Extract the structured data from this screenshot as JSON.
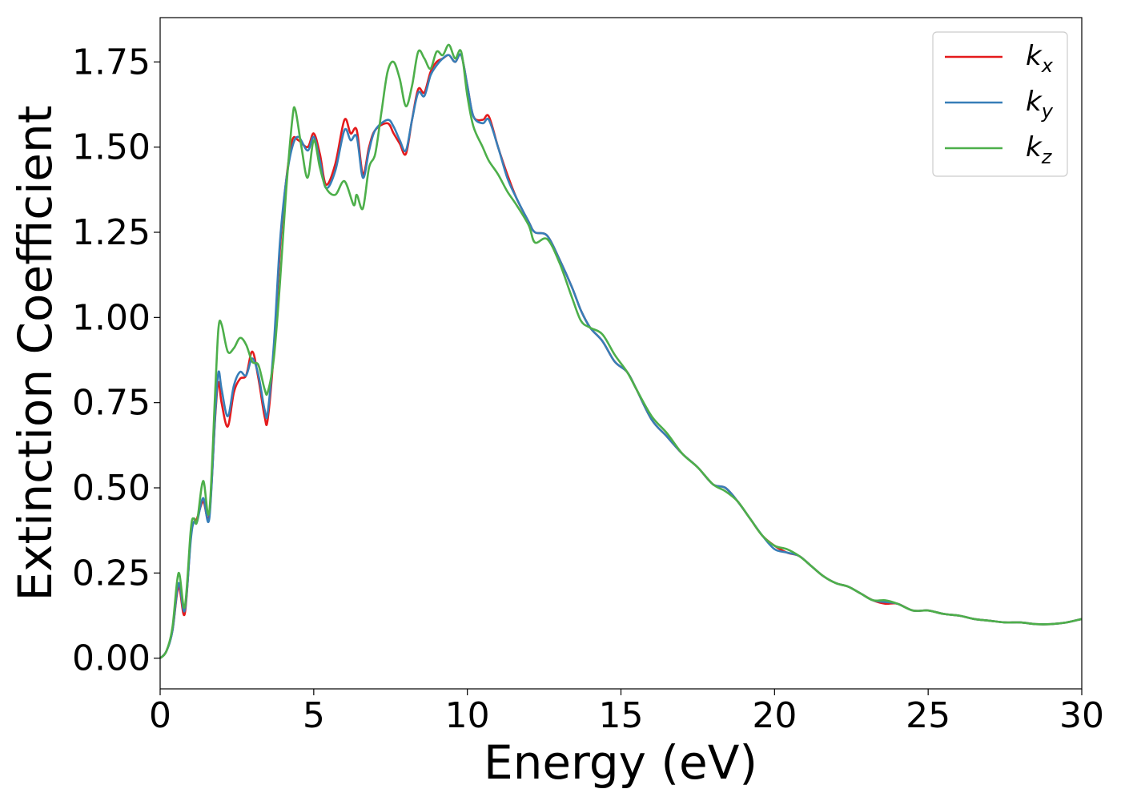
{
  "chart_data": {
    "type": "line",
    "title": "",
    "xlabel": "Energy (eV)",
    "ylabel": "Extinction Coefficient",
    "xlim": [
      0,
      30
    ],
    "ylim": [
      -0.09,
      1.88
    ],
    "xticks": [
      0,
      5,
      10,
      15,
      20,
      25,
      30
    ],
    "xtick_labels": [
      "0",
      "5",
      "10",
      "15",
      "20",
      "25",
      "30"
    ],
    "yticks": [
      0,
      0.25,
      0.5,
      0.75,
      1.0,
      1.25,
      1.5,
      1.75
    ],
    "ytick_labels": [
      "0.00",
      "0.25",
      "0.50",
      "0.75",
      "1.00",
      "1.25",
      "1.50",
      "1.75"
    ],
    "grid": false,
    "legend_position": "top-right",
    "series": [
      {
        "name": "k",
        "name_subscript": "x",
        "color": "#e41a1c",
        "points": [
          [
            0,
            0.0
          ],
          [
            0.2,
            0.02
          ],
          [
            0.4,
            0.08
          ],
          [
            0.6,
            0.21
          ],
          [
            0.8,
            0.13
          ],
          [
            1.0,
            0.36
          ],
          [
            1.1,
            0.4
          ],
          [
            1.2,
            0.41
          ],
          [
            1.4,
            0.46
          ],
          [
            1.6,
            0.42
          ],
          [
            1.8,
            0.72
          ],
          [
            1.9,
            0.81
          ],
          [
            2.0,
            0.75
          ],
          [
            2.2,
            0.68
          ],
          [
            2.4,
            0.78
          ],
          [
            2.6,
            0.82
          ],
          [
            2.8,
            0.83
          ],
          [
            3.0,
            0.9
          ],
          [
            3.2,
            0.82
          ],
          [
            3.4,
            0.71
          ],
          [
            3.5,
            0.7
          ],
          [
            3.7,
            0.9
          ],
          [
            3.9,
            1.2
          ],
          [
            4.1,
            1.4
          ],
          [
            4.3,
            1.52
          ],
          [
            4.5,
            1.52
          ],
          [
            4.8,
            1.5
          ],
          [
            5.0,
            1.54
          ],
          [
            5.2,
            1.48
          ],
          [
            5.4,
            1.39
          ],
          [
            5.7,
            1.45
          ],
          [
            6.0,
            1.58
          ],
          [
            6.2,
            1.54
          ],
          [
            6.4,
            1.55
          ],
          [
            6.6,
            1.42
          ],
          [
            6.8,
            1.5
          ],
          [
            7.0,
            1.55
          ],
          [
            7.4,
            1.57
          ],
          [
            7.6,
            1.54
          ],
          [
            7.8,
            1.51
          ],
          [
            8.0,
            1.48
          ],
          [
            8.2,
            1.58
          ],
          [
            8.4,
            1.67
          ],
          [
            8.6,
            1.66
          ],
          [
            8.8,
            1.72
          ],
          [
            9.0,
            1.75
          ],
          [
            9.2,
            1.76
          ],
          [
            9.4,
            1.77
          ],
          [
            9.6,
            1.75
          ],
          [
            9.8,
            1.77
          ],
          [
            10.0,
            1.68
          ],
          [
            10.2,
            1.59
          ],
          [
            10.5,
            1.58
          ],
          [
            10.7,
            1.59
          ],
          [
            11.0,
            1.5
          ],
          [
            11.3,
            1.42
          ],
          [
            11.6,
            1.35
          ],
          [
            12.0,
            1.28
          ],
          [
            12.2,
            1.25
          ],
          [
            12.6,
            1.24
          ],
          [
            13.0,
            1.17
          ],
          [
            13.4,
            1.09
          ],
          [
            13.7,
            1.02
          ],
          [
            14.0,
            0.97
          ],
          [
            14.4,
            0.93
          ],
          [
            14.8,
            0.87
          ],
          [
            15.2,
            0.84
          ],
          [
            15.5,
            0.79
          ],
          [
            16.0,
            0.7
          ],
          [
            16.5,
            0.65
          ],
          [
            17.0,
            0.6
          ],
          [
            17.5,
            0.56
          ],
          [
            18.0,
            0.51
          ],
          [
            18.4,
            0.5
          ],
          [
            18.8,
            0.46
          ],
          [
            19.2,
            0.41
          ],
          [
            19.6,
            0.36
          ],
          [
            20.0,
            0.33
          ],
          [
            20.4,
            0.31
          ],
          [
            20.8,
            0.3
          ],
          [
            21.2,
            0.27
          ],
          [
            21.6,
            0.24
          ],
          [
            22.0,
            0.22
          ],
          [
            22.4,
            0.21
          ],
          [
            22.8,
            0.19
          ],
          [
            23.2,
            0.17
          ],
          [
            23.6,
            0.16
          ],
          [
            24.0,
            0.16
          ],
          [
            24.5,
            0.14
          ],
          [
            25.0,
            0.14
          ],
          [
            25.5,
            0.13
          ],
          [
            26.0,
            0.125
          ],
          [
            26.5,
            0.115
          ],
          [
            27.0,
            0.11
          ],
          [
            27.5,
            0.105
          ],
          [
            28.0,
            0.105
          ],
          [
            28.5,
            0.1
          ],
          [
            29.0,
            0.1
          ],
          [
            29.5,
            0.105
          ],
          [
            30.0,
            0.115
          ]
        ]
      },
      {
        "name": "k",
        "name_subscript": "y",
        "color": "#377eb8",
        "points": [
          [
            0,
            0.0
          ],
          [
            0.2,
            0.02
          ],
          [
            0.4,
            0.08
          ],
          [
            0.6,
            0.22
          ],
          [
            0.8,
            0.14
          ],
          [
            1.0,
            0.35
          ],
          [
            1.1,
            0.4
          ],
          [
            1.2,
            0.4
          ],
          [
            1.4,
            0.47
          ],
          [
            1.6,
            0.41
          ],
          [
            1.8,
            0.73
          ],
          [
            1.9,
            0.84
          ],
          [
            2.0,
            0.79
          ],
          [
            2.2,
            0.71
          ],
          [
            2.4,
            0.8
          ],
          [
            2.6,
            0.84
          ],
          [
            2.8,
            0.83
          ],
          [
            3.0,
            0.88
          ],
          [
            3.2,
            0.83
          ],
          [
            3.4,
            0.73
          ],
          [
            3.5,
            0.72
          ],
          [
            3.7,
            0.92
          ],
          [
            3.9,
            1.22
          ],
          [
            4.1,
            1.4
          ],
          [
            4.3,
            1.5
          ],
          [
            4.5,
            1.53
          ],
          [
            4.8,
            1.49
          ],
          [
            5.0,
            1.53
          ],
          [
            5.2,
            1.46
          ],
          [
            5.4,
            1.38
          ],
          [
            5.7,
            1.43
          ],
          [
            6.0,
            1.55
          ],
          [
            6.2,
            1.52
          ],
          [
            6.4,
            1.53
          ],
          [
            6.6,
            1.41
          ],
          [
            6.8,
            1.49
          ],
          [
            7.0,
            1.55
          ],
          [
            7.4,
            1.58
          ],
          [
            7.6,
            1.56
          ],
          [
            7.8,
            1.52
          ],
          [
            8.0,
            1.49
          ],
          [
            8.2,
            1.58
          ],
          [
            8.4,
            1.66
          ],
          [
            8.6,
            1.65
          ],
          [
            8.8,
            1.71
          ],
          [
            9.0,
            1.74
          ],
          [
            9.2,
            1.76
          ],
          [
            9.4,
            1.77
          ],
          [
            9.6,
            1.75
          ],
          [
            9.8,
            1.77
          ],
          [
            10.0,
            1.68
          ],
          [
            10.2,
            1.59
          ],
          [
            10.5,
            1.57
          ],
          [
            10.7,
            1.58
          ],
          [
            11.0,
            1.5
          ],
          [
            11.3,
            1.41
          ],
          [
            11.6,
            1.35
          ],
          [
            12.0,
            1.28
          ],
          [
            12.2,
            1.25
          ],
          [
            12.6,
            1.24
          ],
          [
            13.0,
            1.17
          ],
          [
            13.4,
            1.09
          ],
          [
            13.7,
            1.02
          ],
          [
            14.0,
            0.97
          ],
          [
            14.4,
            0.93
          ],
          [
            14.8,
            0.87
          ],
          [
            15.2,
            0.84
          ],
          [
            15.5,
            0.79
          ],
          [
            16.0,
            0.7
          ],
          [
            16.5,
            0.65
          ],
          [
            17.0,
            0.6
          ],
          [
            17.5,
            0.56
          ],
          [
            18.0,
            0.51
          ],
          [
            18.4,
            0.5
          ],
          [
            18.8,
            0.46
          ],
          [
            19.2,
            0.41
          ],
          [
            19.6,
            0.36
          ],
          [
            20.0,
            0.32
          ],
          [
            20.4,
            0.31
          ],
          [
            20.8,
            0.3
          ],
          [
            21.2,
            0.27
          ],
          [
            21.6,
            0.24
          ],
          [
            22.0,
            0.22
          ],
          [
            22.4,
            0.21
          ],
          [
            22.8,
            0.19
          ],
          [
            23.2,
            0.17
          ],
          [
            23.6,
            0.165
          ],
          [
            24.0,
            0.16
          ],
          [
            24.5,
            0.14
          ],
          [
            25.0,
            0.14
          ],
          [
            25.5,
            0.13
          ],
          [
            26.0,
            0.125
          ],
          [
            26.5,
            0.115
          ],
          [
            27.0,
            0.11
          ],
          [
            27.5,
            0.105
          ],
          [
            28.0,
            0.105
          ],
          [
            28.5,
            0.1
          ],
          [
            29.0,
            0.1
          ],
          [
            29.5,
            0.105
          ],
          [
            30.0,
            0.115
          ]
        ]
      },
      {
        "name": "k",
        "name_subscript": "z",
        "color": "#4daf4a",
        "points": [
          [
            0,
            0.0
          ],
          [
            0.2,
            0.02
          ],
          [
            0.4,
            0.09
          ],
          [
            0.6,
            0.25
          ],
          [
            0.8,
            0.15
          ],
          [
            1.0,
            0.38
          ],
          [
            1.1,
            0.41
          ],
          [
            1.2,
            0.4
          ],
          [
            1.4,
            0.52
          ],
          [
            1.6,
            0.43
          ],
          [
            1.8,
            0.8
          ],
          [
            1.9,
            0.97
          ],
          [
            2.0,
            0.98
          ],
          [
            2.2,
            0.9
          ],
          [
            2.4,
            0.91
          ],
          [
            2.6,
            0.94
          ],
          [
            2.8,
            0.92
          ],
          [
            3.0,
            0.87
          ],
          [
            3.2,
            0.86
          ],
          [
            3.4,
            0.79
          ],
          [
            3.5,
            0.78
          ],
          [
            3.7,
            0.88
          ],
          [
            3.9,
            1.1
          ],
          [
            4.1,
            1.37
          ],
          [
            4.3,
            1.58
          ],
          [
            4.4,
            1.61
          ],
          [
            4.6,
            1.5
          ],
          [
            4.8,
            1.41
          ],
          [
            5.0,
            1.52
          ],
          [
            5.2,
            1.44
          ],
          [
            5.4,
            1.38
          ],
          [
            5.7,
            1.36
          ],
          [
            6.0,
            1.4
          ],
          [
            6.3,
            1.33
          ],
          [
            6.4,
            1.36
          ],
          [
            6.6,
            1.32
          ],
          [
            6.8,
            1.44
          ],
          [
            7.0,
            1.48
          ],
          [
            7.2,
            1.6
          ],
          [
            7.4,
            1.72
          ],
          [
            7.6,
            1.75
          ],
          [
            7.8,
            1.7
          ],
          [
            8.0,
            1.62
          ],
          [
            8.2,
            1.68
          ],
          [
            8.4,
            1.78
          ],
          [
            8.6,
            1.76
          ],
          [
            8.8,
            1.73
          ],
          [
            9.0,
            1.78
          ],
          [
            9.2,
            1.77
          ],
          [
            9.4,
            1.8
          ],
          [
            9.6,
            1.76
          ],
          [
            9.8,
            1.78
          ],
          [
            10.0,
            1.65
          ],
          [
            10.2,
            1.56
          ],
          [
            10.5,
            1.5
          ],
          [
            10.7,
            1.46
          ],
          [
            11.0,
            1.42
          ],
          [
            11.3,
            1.37
          ],
          [
            11.6,
            1.33
          ],
          [
            12.0,
            1.27
          ],
          [
            12.2,
            1.22
          ],
          [
            12.6,
            1.23
          ],
          [
            13.0,
            1.16
          ],
          [
            13.4,
            1.06
          ],
          [
            13.7,
            0.99
          ],
          [
            14.0,
            0.97
          ],
          [
            14.4,
            0.95
          ],
          [
            14.8,
            0.89
          ],
          [
            15.2,
            0.84
          ],
          [
            15.5,
            0.79
          ],
          [
            16.0,
            0.71
          ],
          [
            16.5,
            0.66
          ],
          [
            17.0,
            0.6
          ],
          [
            17.5,
            0.56
          ],
          [
            18.0,
            0.51
          ],
          [
            18.4,
            0.49
          ],
          [
            18.8,
            0.46
          ],
          [
            19.2,
            0.41
          ],
          [
            19.6,
            0.36
          ],
          [
            20.0,
            0.33
          ],
          [
            20.4,
            0.32
          ],
          [
            20.8,
            0.3
          ],
          [
            21.2,
            0.27
          ],
          [
            21.6,
            0.24
          ],
          [
            22.0,
            0.22
          ],
          [
            22.4,
            0.21
          ],
          [
            22.8,
            0.19
          ],
          [
            23.2,
            0.17
          ],
          [
            23.6,
            0.17
          ],
          [
            24.0,
            0.16
          ],
          [
            24.5,
            0.14
          ],
          [
            25.0,
            0.14
          ],
          [
            25.5,
            0.13
          ],
          [
            26.0,
            0.125
          ],
          [
            26.5,
            0.115
          ],
          [
            27.0,
            0.11
          ],
          [
            27.5,
            0.105
          ],
          [
            28.0,
            0.105
          ],
          [
            28.5,
            0.1
          ],
          [
            29.0,
            0.1
          ],
          [
            29.5,
            0.105
          ],
          [
            30.0,
            0.115
          ]
        ]
      }
    ]
  }
}
